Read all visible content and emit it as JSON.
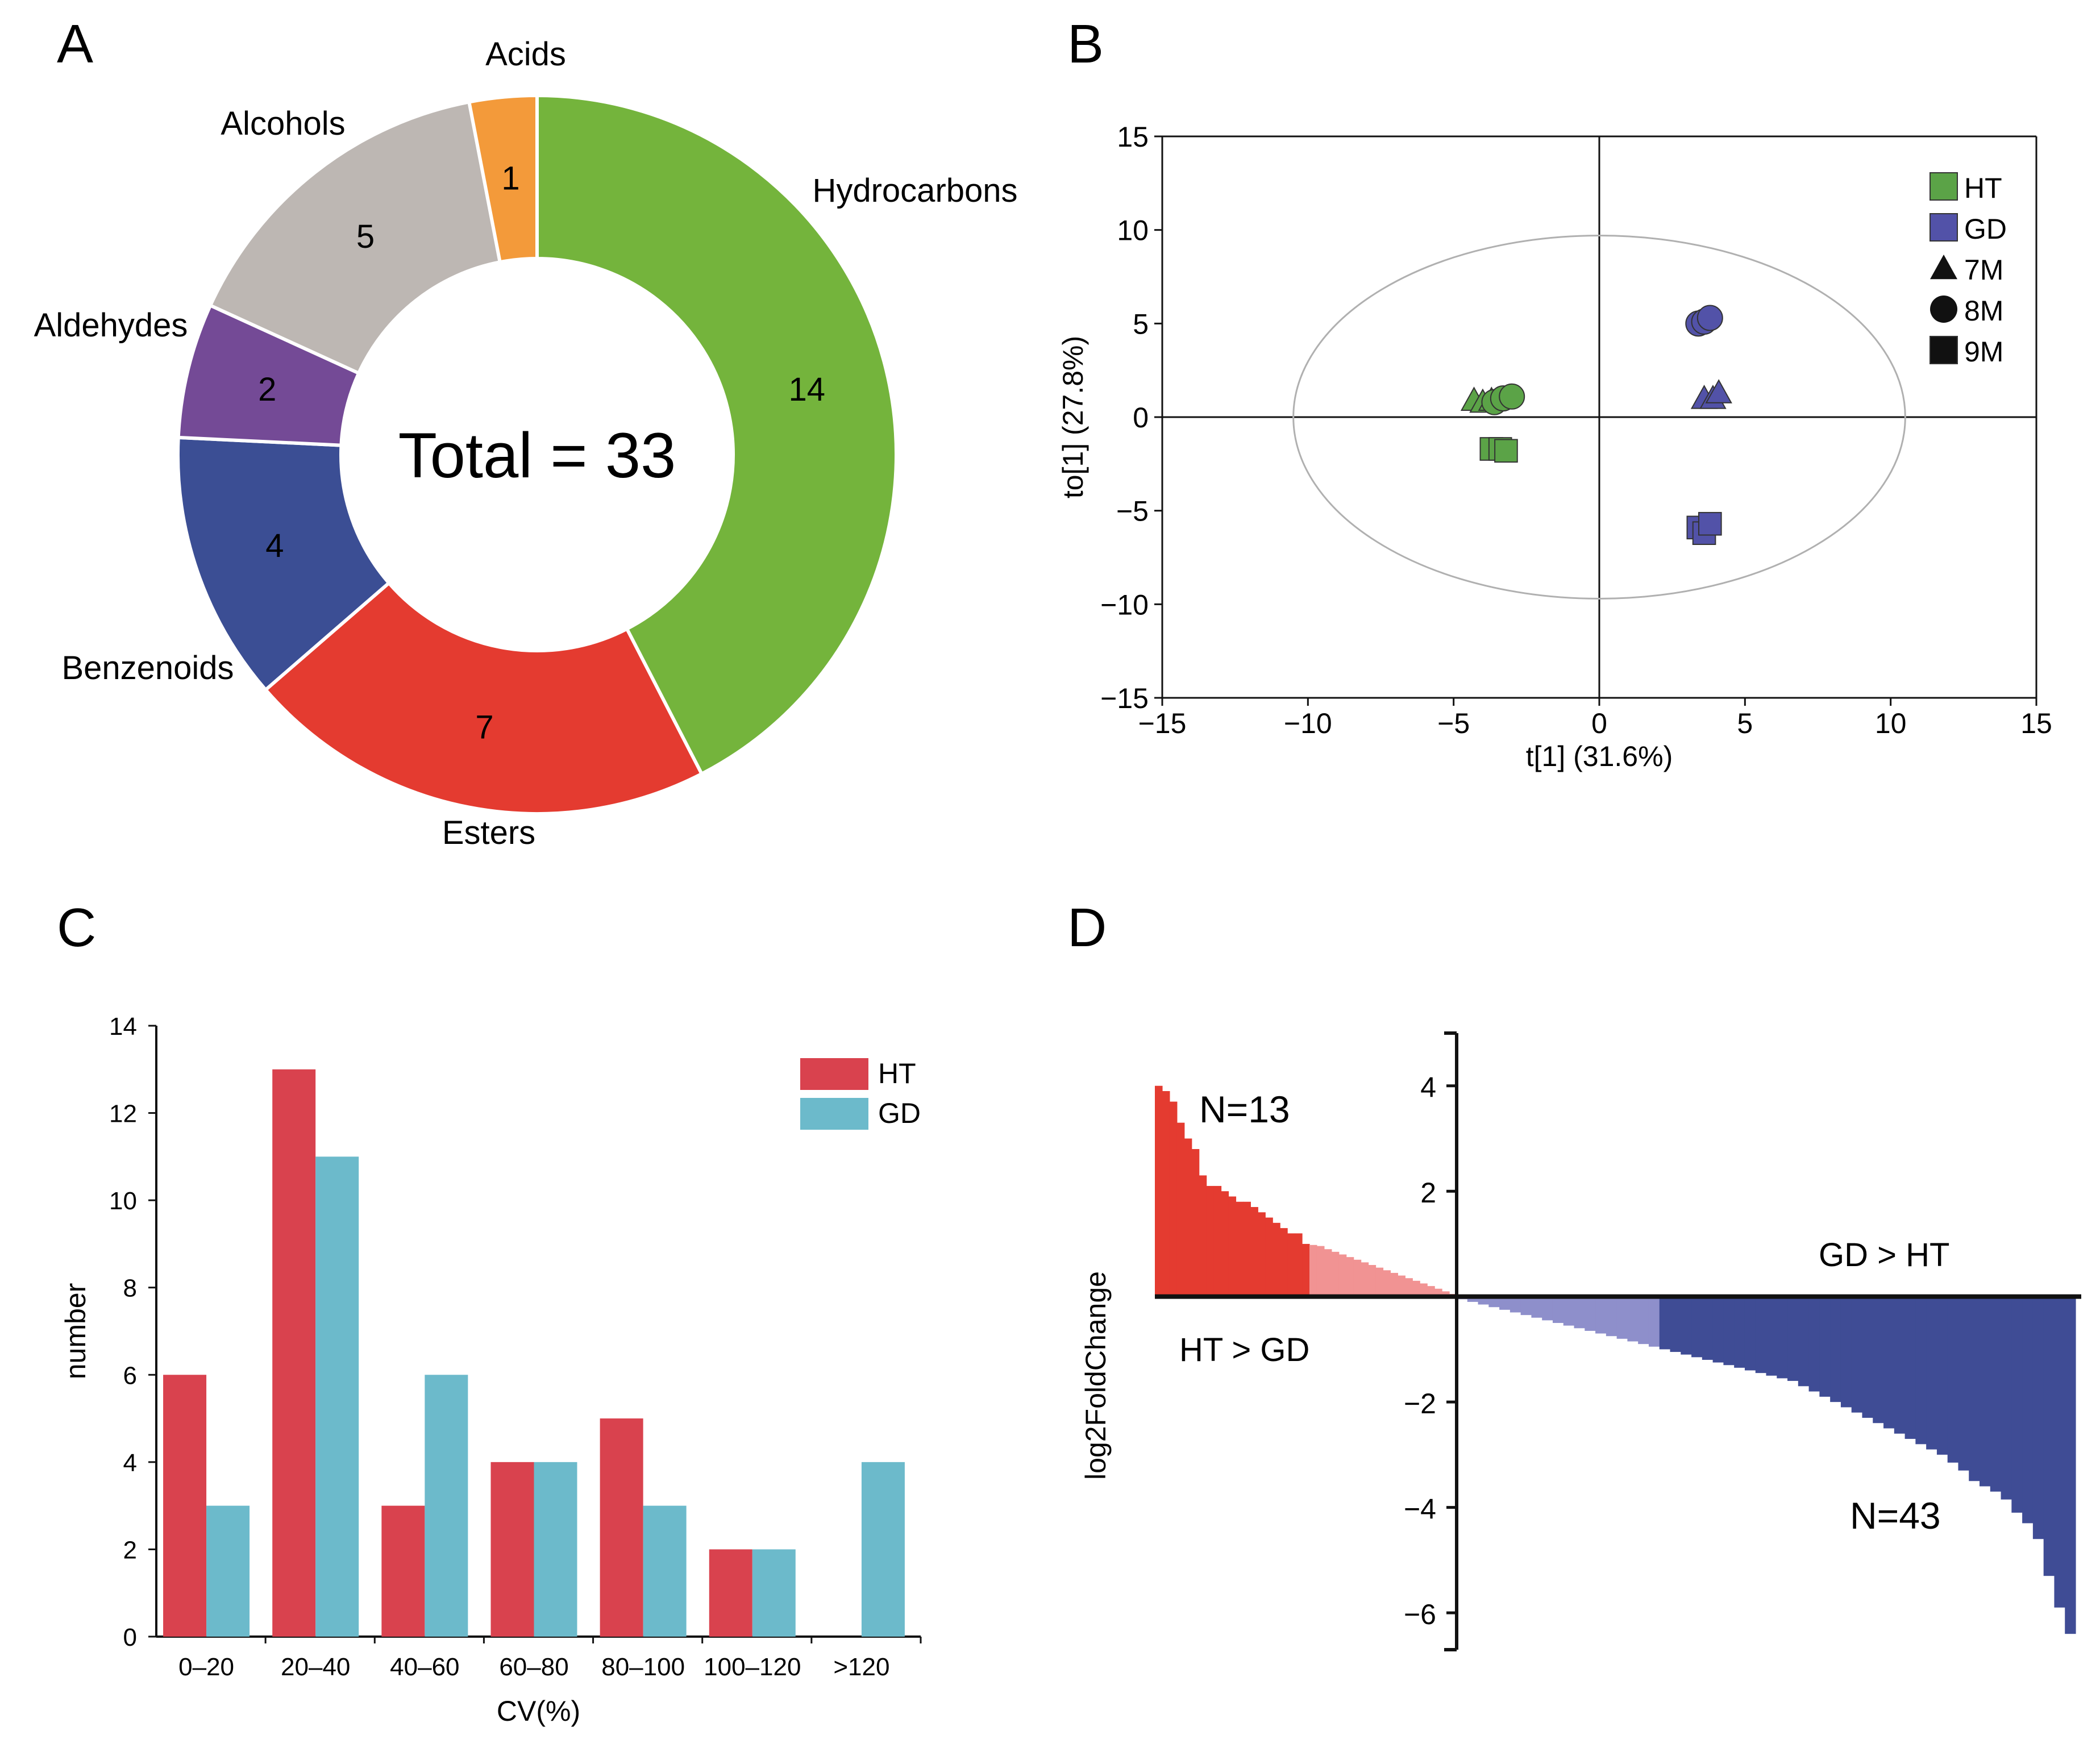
{
  "panels": {
    "a": "A",
    "b": "B",
    "c": "C",
    "d": "D"
  },
  "chart_data": [
    {
      "panel": "A",
      "type": "pie",
      "subtype": "donut",
      "center_label": "Total = 33",
      "slices": [
        {
          "name": "Hydrocarbons",
          "value": 14,
          "label": "14",
          "color": "#74B43C"
        },
        {
          "name": "Esters",
          "value": 7,
          "label": "7",
          "color": "#E43B30"
        },
        {
          "name": "Benzenoids",
          "value": 4,
          "label": "4",
          "color": "#3B4E94"
        },
        {
          "name": "Aldehydes",
          "value": 2,
          "label": "2",
          "color": "#744A96"
        },
        {
          "name": "Alcohols",
          "value": 5,
          "label": "5",
          "color": "#BDB7B3"
        },
        {
          "name": "Acids",
          "value": 1,
          "label": "1",
          "color": "#F39A3A"
        }
      ]
    },
    {
      "panel": "B",
      "type": "scatter",
      "xlabel": "t[1] (31.6%)",
      "ylabel": "to[1] (27.8%)",
      "xlim": [
        -15,
        15
      ],
      "ylim": [
        -15,
        15
      ],
      "xticks": [
        -15,
        -10,
        -5,
        0,
        5,
        10,
        15
      ],
      "yticks": [
        -15,
        -10,
        -5,
        0,
        5,
        10,
        15
      ],
      "xtick_labels": [
        "−15",
        "−10",
        "−5",
        "0",
        "5",
        "10",
        "15"
      ],
      "ytick_labels": [
        "−15",
        "−10",
        "−5",
        "0",
        "5",
        "10",
        "15"
      ],
      "ellipse": {
        "cx": 0,
        "cy": 0,
        "rx": 10.5,
        "ry": 9.7
      },
      "legend": [
        {
          "label": "HT",
          "marker": "square",
          "color": "#5BA347"
        },
        {
          "label": "GD",
          "marker": "square",
          "color": "#5252A8"
        },
        {
          "label": "7M",
          "marker": "triangle",
          "color": "#111111"
        },
        {
          "label": "8M",
          "marker": "circle",
          "color": "#111111"
        },
        {
          "label": "9M",
          "marker": "square",
          "color": "#111111"
        }
      ],
      "points": [
        {
          "group": "HT",
          "month": "7M",
          "x": -4.3,
          "y": 0.9
        },
        {
          "group": "HT",
          "month": "7M",
          "x": -4.0,
          "y": 0.8
        },
        {
          "group": "HT",
          "month": "7M",
          "x": -3.7,
          "y": 0.9
        },
        {
          "group": "HT",
          "month": "8M",
          "x": -3.6,
          "y": 0.8
        },
        {
          "group": "HT",
          "month": "8M",
          "x": -3.3,
          "y": 1.0
        },
        {
          "group": "HT",
          "month": "8M",
          "x": -3.0,
          "y": 1.1
        },
        {
          "group": "HT",
          "month": "9M",
          "x": -3.7,
          "y": -1.7
        },
        {
          "group": "HT",
          "month": "9M",
          "x": -3.4,
          "y": -1.7
        },
        {
          "group": "HT",
          "month": "9M",
          "x": -3.2,
          "y": -1.8
        },
        {
          "group": "GD",
          "month": "7M",
          "x": 3.6,
          "y": 1.0
        },
        {
          "group": "GD",
          "month": "7M",
          "x": 3.9,
          "y": 1.0
        },
        {
          "group": "GD",
          "month": "7M",
          "x": 4.1,
          "y": 1.3
        },
        {
          "group": "GD",
          "month": "8M",
          "x": 3.4,
          "y": 5.0
        },
        {
          "group": "GD",
          "month": "8M",
          "x": 3.6,
          "y": 5.1
        },
        {
          "group": "GD",
          "month": "8M",
          "x": 3.8,
          "y": 5.3
        },
        {
          "group": "GD",
          "month": "9M",
          "x": 3.4,
          "y": -5.9
        },
        {
          "group": "GD",
          "month": "9M",
          "x": 3.6,
          "y": -6.2
        },
        {
          "group": "GD",
          "month": "9M",
          "x": 3.8,
          "y": -5.7
        }
      ]
    },
    {
      "panel": "C",
      "type": "bar",
      "xlabel": "CV(%)",
      "ylabel": "number",
      "ylim": [
        0,
        14
      ],
      "yticks": [
        0,
        2,
        4,
        6,
        8,
        10,
        12,
        14
      ],
      "categories": [
        "0–20",
        "20–40",
        "40–60",
        "60–80",
        "80–100",
        "100–120",
        ">120"
      ],
      "series": [
        {
          "name": "HT",
          "color": "#D9424E",
          "values": [
            6,
            13,
            3,
            4,
            5,
            2,
            0
          ]
        },
        {
          "name": "GD",
          "color": "#6CBACB",
          "values": [
            3,
            11,
            6,
            4,
            3,
            2,
            4
          ]
        }
      ]
    },
    {
      "panel": "D",
      "type": "bar",
      "subtype": "waterfall",
      "ylabel": "log2FoldChange",
      "ylim": [
        -6.7,
        5
      ],
      "yticks": [
        -6,
        -4,
        -2,
        2,
        4
      ],
      "ytick_labels": [
        "−6",
        "−4",
        "−2",
        "2",
        "4"
      ],
      "annotations": {
        "n_up": "N=13",
        "n_down": "N=43",
        "up_label": "HT > GD",
        "down_label": "GD > HT"
      },
      "colors": {
        "up_strong": "#E43B30",
        "up_weak": "#F19393",
        "down_weak": "#8E8FCB",
        "down_strong": "#3F4C95"
      },
      "up_values": [
        4.0,
        3.9,
        3.7,
        3.3,
        3.0,
        2.8,
        2.3,
        2.1,
        2.1,
        2.0,
        1.9,
        1.8,
        1.8,
        1.7,
        1.6,
        1.5,
        1.4,
        1.3,
        1.2,
        1.2,
        1.0,
        0.98,
        0.96,
        0.9,
        0.85,
        0.8,
        0.75,
        0.7,
        0.65,
        0.6,
        0.55,
        0.5,
        0.45,
        0.4,
        0.35,
        0.3,
        0.25,
        0.2,
        0.15,
        0.1,
        0.05
      ],
      "down_values": [
        -0.05,
        -0.1,
        -0.15,
        -0.2,
        -0.25,
        -0.3,
        -0.35,
        -0.4,
        -0.45,
        -0.5,
        -0.55,
        -0.6,
        -0.65,
        -0.7,
        -0.75,
        -0.8,
        -0.85,
        -0.9,
        -0.95,
        -1.0,
        -1.05,
        -1.1,
        -1.15,
        -1.2,
        -1.25,
        -1.3,
        -1.35,
        -1.4,
        -1.45,
        -1.5,
        -1.55,
        -1.6,
        -1.7,
        -1.8,
        -1.9,
        -2.0,
        -2.1,
        -2.2,
        -2.3,
        -2.4,
        -2.5,
        -2.6,
        -2.7,
        -2.8,
        -2.9,
        -3.0,
        -3.15,
        -3.3,
        -3.5,
        -3.6,
        -3.7,
        -3.85,
        -4.1,
        -4.3,
        -4.6,
        -5.3,
        -5.9,
        -6.4
      ]
    }
  ]
}
